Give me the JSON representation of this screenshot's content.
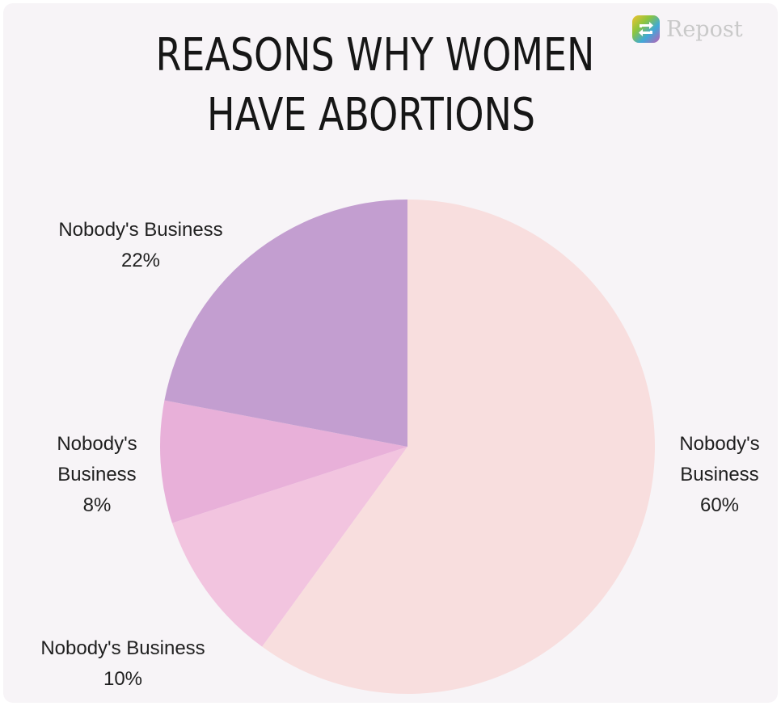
{
  "badge": {
    "text": "Repost",
    "icon": "repost-icon"
  },
  "chart_data": {
    "type": "pie",
    "title": [
      "REASONS WHY WOMEN",
      "HAVE ABORTIONS"
    ],
    "slices": [
      {
        "label": "Nobody's Business",
        "value": 60,
        "value_label": "60%",
        "color": "#f8dede"
      },
      {
        "label": "Nobody's Business",
        "value": 10,
        "value_label": "10%",
        "color": "#f2c4df"
      },
      {
        "label": "Nobody's Business",
        "value": 8,
        "value_label": "8%",
        "color": "#e8b0d9"
      },
      {
        "label": "Nobody's Business",
        "value": 22,
        "value_label": "22%",
        "color": "#c39ed0"
      }
    ],
    "start": "12 o'clock",
    "direction": "clockwise",
    "legend": "none"
  }
}
